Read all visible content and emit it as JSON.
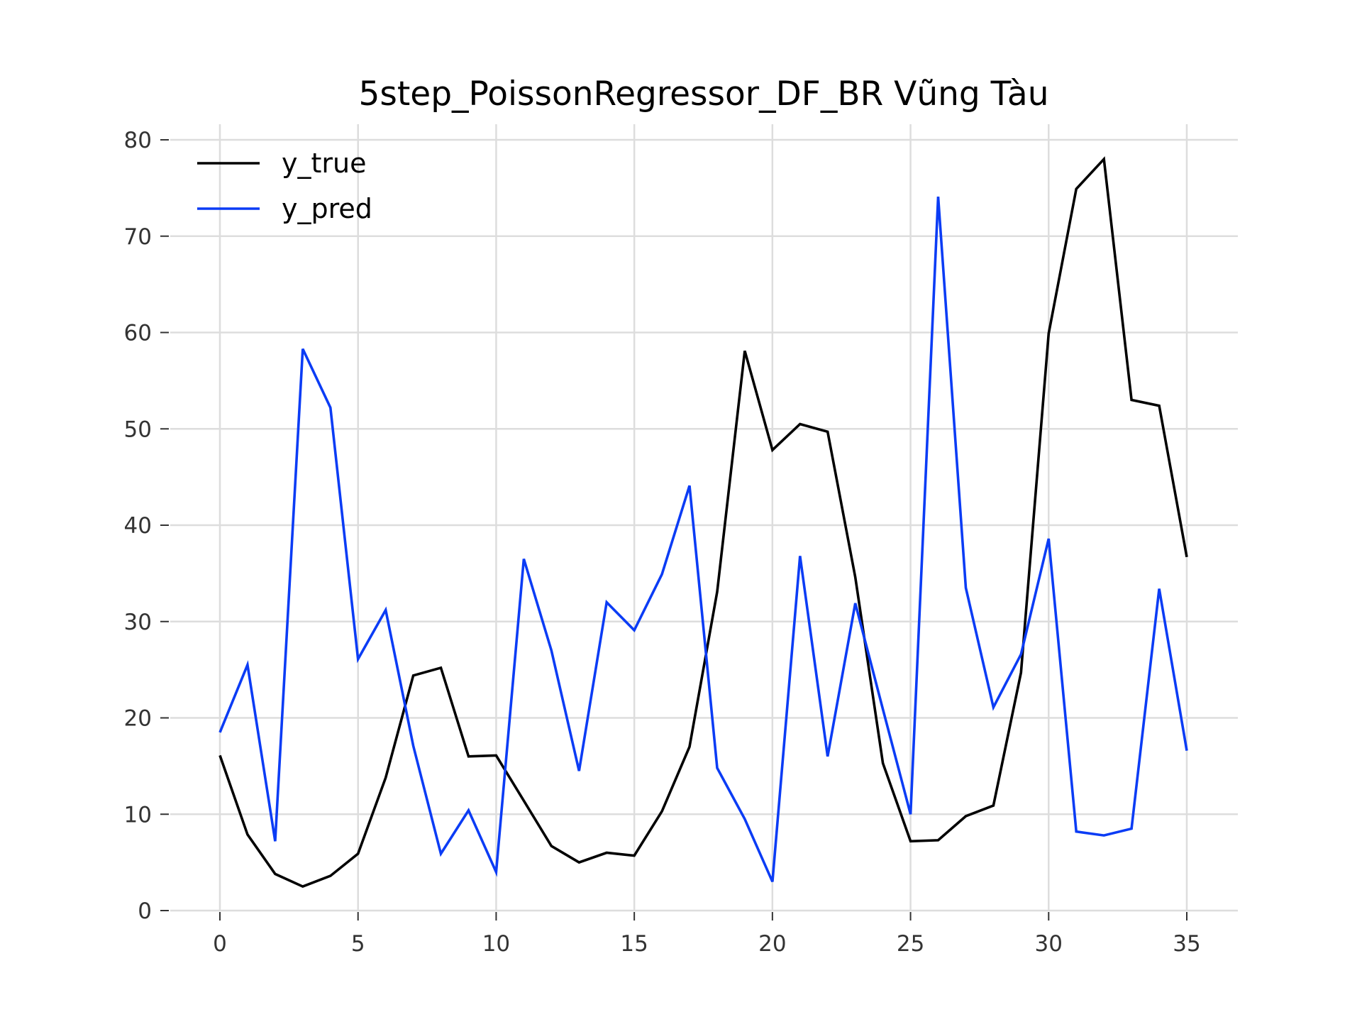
{
  "chart_data": {
    "type": "line",
    "title": "5step_PoissonRegressor_DF_BR Vũng Tàu",
    "xlabel": "",
    "ylabel": "",
    "xlim": [
      -1.8,
      36.8
    ],
    "ylim": [
      0,
      80
    ],
    "xticks": [
      0,
      5,
      10,
      15,
      20,
      25,
      30,
      35
    ],
    "yticks": [
      0,
      10,
      20,
      30,
      40,
      50,
      60,
      70,
      80
    ],
    "grid": true,
    "legend": "top-left",
    "x": [
      0,
      1,
      2,
      3,
      4,
      5,
      6,
      7,
      8,
      9,
      10,
      11,
      12,
      13,
      14,
      15,
      16,
      17,
      18,
      19,
      20,
      21,
      22,
      23,
      24,
      25,
      26,
      27,
      28,
      29,
      30,
      31,
      32,
      33,
      34,
      35
    ],
    "series": [
      {
        "name": "y_true",
        "color": "#000000",
        "values": [
          16.1,
          7.9,
          3.8,
          2.5,
          3.6,
          5.9,
          13.8,
          24.4,
          25.2,
          16.0,
          16.1,
          11.4,
          6.7,
          5.0,
          6.0,
          5.7,
          10.3,
          17.0,
          33.1,
          58.1,
          47.8,
          50.5,
          49.7,
          34.6,
          15.3,
          7.2,
          7.3,
          9.8,
          10.9,
          24.7,
          59.9,
          74.9,
          78.0,
          53.0,
          52.4,
          36.7
        ]
      },
      {
        "name": "y_pred",
        "color": "#0b3cf5",
        "values": [
          18.5,
          25.5,
          7.2,
          58.3,
          52.2,
          26.1,
          31.2,
          17.1,
          5.9,
          10.4,
          4.0,
          36.5,
          27.0,
          14.5,
          32.0,
          29.1,
          34.9,
          44.1,
          14.8,
          9.5,
          3.0,
          36.8,
          16.0,
          31.9,
          20.9,
          10.0,
          74.1,
          33.5,
          21.1,
          26.6,
          38.6,
          8.2,
          7.8,
          8.5,
          33.4,
          16.6
        ]
      }
    ]
  }
}
